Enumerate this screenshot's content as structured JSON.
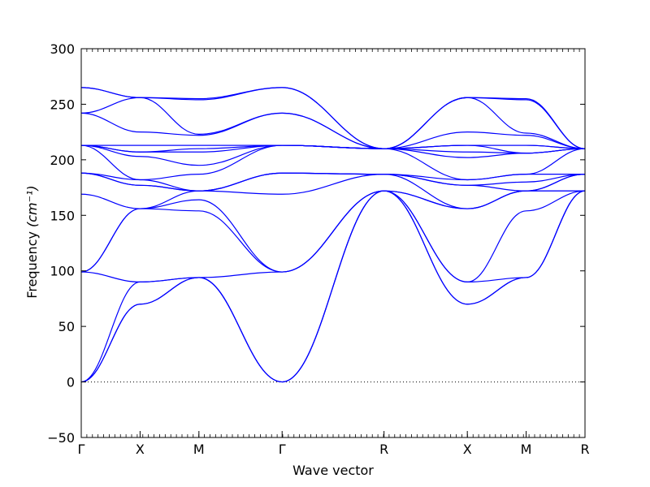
{
  "chart_data": {
    "type": "line",
    "xlabel": "Wave vector",
    "ylabel": "Frequency",
    "ylabel_unit": "(cm⁻¹)",
    "ylim": [
      -50,
      300
    ],
    "y_ticks": [
      -50,
      0,
      50,
      100,
      150,
      200,
      250,
      300
    ],
    "x_ticks": [
      {
        "label": "Γ",
        "x": 0
      },
      {
        "label": "X",
        "x": 0.5
      },
      {
        "label": "M",
        "x": 1.0
      },
      {
        "label": "Γ",
        "x": 1.707
      },
      {
        "label": "R",
        "x": 2.573
      },
      {
        "label": "X",
        "x": 3.281
      },
      {
        "label": "M",
        "x": 3.781
      },
      {
        "label": "R",
        "x": 4.281
      }
    ],
    "xlim": [
      0,
      4.281
    ],
    "zero_line": {
      "y": 0,
      "style": "dotted"
    },
    "line_color": "#0000ff",
    "grid": false,
    "legend": "none",
    "series": [
      {
        "values": [
          0,
          70,
          94,
          0,
          172,
          70,
          94,
          172
        ]
      },
      {
        "values": [
          0,
          70,
          94,
          0,
          172,
          70,
          94,
          172
        ]
      },
      {
        "values": [
          0,
          90,
          94,
          0,
          172,
          90,
          154,
          172
        ]
      },
      {
        "values": [
          99,
          90,
          94,
          99,
          172,
          90,
          94,
          172
        ]
      },
      {
        "values": [
          99,
          156,
          154,
          99,
          172,
          156,
          172,
          172
        ]
      },
      {
        "values": [
          99,
          156,
          164,
          99,
          172,
          156,
          172,
          172
        ]
      },
      {
        "values": [
          169,
          156,
          172,
          169,
          187,
          156,
          172,
          187
        ]
      },
      {
        "values": [
          188,
          177,
          172,
          188,
          187,
          177,
          172,
          187
        ]
      },
      {
        "values": [
          188,
          177,
          172,
          188,
          187,
          177,
          180,
          187
        ]
      },
      {
        "values": [
          188,
          182,
          172,
          188,
          187,
          182,
          187,
          187
        ]
      },
      {
        "values": [
          213,
          182,
          187,
          213,
          210,
          182,
          187,
          210
        ]
      },
      {
        "values": [
          213,
          203,
          195,
          213,
          210,
          202,
          206,
          210
        ]
      },
      {
        "values": [
          213,
          207,
          207,
          213,
          210,
          207,
          206,
          210
        ]
      },
      {
        "values": [
          213,
          207,
          210,
          213,
          210,
          213,
          206,
          210
        ]
      },
      {
        "values": [
          213,
          213,
          213,
          213,
          210,
          213,
          213,
          210
        ]
      },
      {
        "values": [
          213,
          213,
          213,
          213,
          210,
          213,
          213,
          210
        ]
      },
      {
        "values": [
          242,
          225,
          222,
          242,
          210,
          225,
          222,
          210
        ]
      },
      {
        "values": [
          242,
          256,
          223,
          242,
          210,
          256,
          224,
          210
        ]
      },
      {
        "values": [
          265,
          256,
          254,
          265,
          210,
          256,
          254,
          210
        ]
      },
      {
        "values": [
          265,
          256,
          255,
          265,
          210,
          256,
          255,
          210
        ]
      }
    ]
  }
}
